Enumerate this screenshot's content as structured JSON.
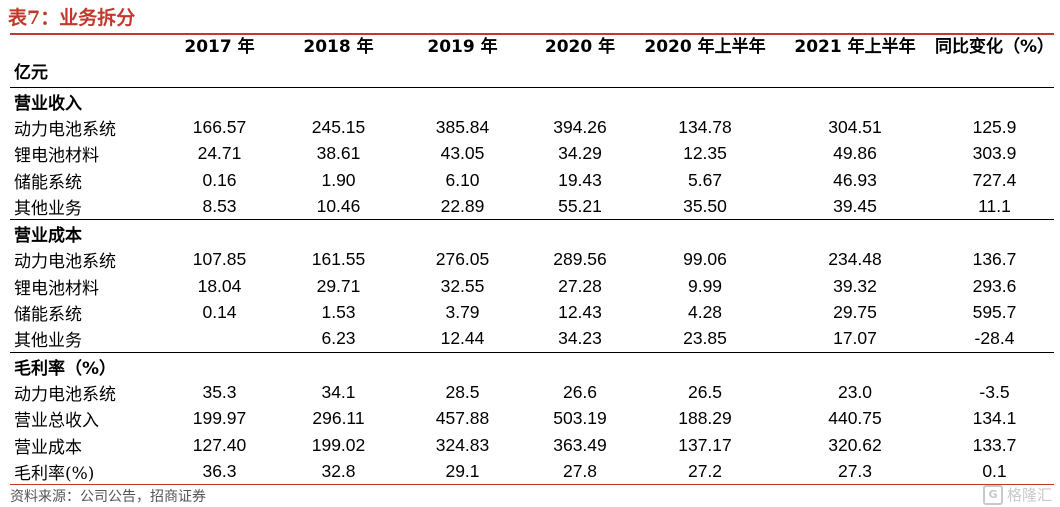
{
  "title": "表7：业务拆分",
  "header": {
    "unit": "亿元",
    "columns": [
      "2017 年",
      "2018 年",
      "2019 年",
      "2020 年",
      "2020 年上半年",
      "2021 年上半年",
      "同比变化（%）"
    ]
  },
  "sections": [
    {
      "heading": "营业收入",
      "rows": [
        {
          "label": "动力电池系统",
          "values": [
            "166.57",
            "245.15",
            "385.84",
            "394.26",
            "134.78",
            "304.51",
            "125.9"
          ]
        },
        {
          "label": "锂电池材料",
          "values": [
            "24.71",
            "38.61",
            "43.05",
            "34.29",
            "12.35",
            "49.86",
            "303.9"
          ]
        },
        {
          "label": "储能系统",
          "values": [
            "0.16",
            "1.90",
            "6.10",
            "19.43",
            "5.67",
            "46.93",
            "727.4"
          ]
        },
        {
          "label": "其他业务",
          "values": [
            "8.53",
            "10.46",
            "22.89",
            "55.21",
            "35.50",
            "39.45",
            "11.1"
          ]
        }
      ]
    },
    {
      "heading": "营业成本",
      "rows": [
        {
          "label": "动力电池系统",
          "values": [
            "107.85",
            "161.55",
            "276.05",
            "289.56",
            "99.06",
            "234.48",
            "136.7"
          ]
        },
        {
          "label": "锂电池材料",
          "values": [
            "18.04",
            "29.71",
            "32.55",
            "27.28",
            "9.99",
            "39.32",
            "293.6"
          ]
        },
        {
          "label": "储能系统",
          "values": [
            "0.14",
            "1.53",
            "3.79",
            "12.43",
            "4.28",
            "29.75",
            "595.7"
          ]
        },
        {
          "label": "其他业务",
          "values": [
            "",
            "6.23",
            "12.44",
            "34.23",
            "23.85",
            "17.07",
            "-28.4"
          ]
        }
      ]
    },
    {
      "heading": "毛利率（%）",
      "rows": [
        {
          "label": "动力电池系统",
          "values": [
            "35.3",
            "34.1",
            "28.5",
            "26.6",
            "26.5",
            "23.0",
            "-3.5"
          ]
        },
        {
          "label": "营业总收入",
          "values": [
            "199.97",
            "296.11",
            "457.88",
            "503.19",
            "188.29",
            "440.75",
            "134.1"
          ]
        },
        {
          "label": "营业成本",
          "values": [
            "127.40",
            "199.02",
            "324.83",
            "363.49",
            "137.17",
            "320.62",
            "133.7"
          ]
        },
        {
          "label": "毛利率(%)",
          "values": [
            "36.3",
            "32.8",
            "29.1",
            "27.8",
            "27.2",
            "27.3",
            "0.1"
          ]
        }
      ]
    }
  ],
  "source": "资料来源：公司公告，招商证券",
  "watermark": {
    "logo": "G",
    "text": "格隆汇"
  }
}
